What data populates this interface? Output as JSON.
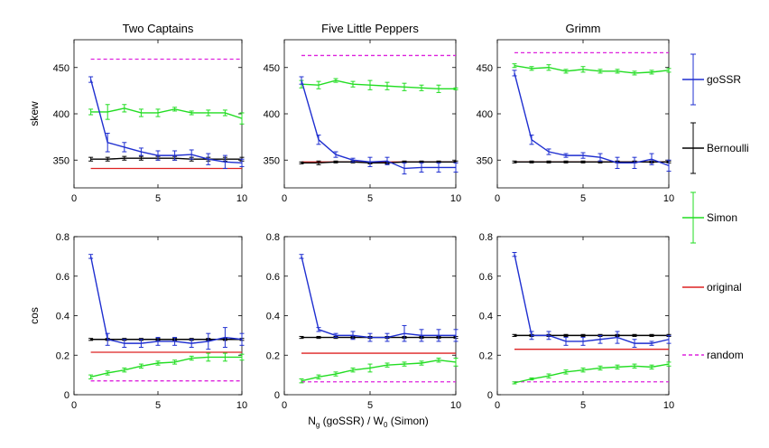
{
  "figure": {
    "xlabel_main": "N",
    "xlabel_sub": "g",
    "xlabel_mid": " (goSSR)  /  W",
    "xlabel_sub2": "0",
    "xlabel_tail": " (Simon)"
  },
  "legend": [
    {
      "label": "goSSR",
      "color": "#1f2fd0",
      "style": "errorbar"
    },
    {
      "label": "Bernoulli",
      "color": "#000000",
      "style": "errorbar"
    },
    {
      "label": "Simon",
      "color": "#22dd22",
      "style": "errorbar"
    },
    {
      "label": "original",
      "color": "#dd2222",
      "style": "solid"
    },
    {
      "label": "random",
      "color": "#dd22dd",
      "style": "dashed"
    }
  ],
  "chart_data": [
    {
      "type": "line",
      "title": "Two Captains",
      "ylabel": "skew",
      "xlabel": "",
      "xlim": [
        0,
        10
      ],
      "ylim": [
        320,
        480
      ],
      "yticks": [
        350,
        400,
        450
      ],
      "xticks": [
        0,
        5,
        10
      ],
      "x": [
        1,
        2,
        3,
        4,
        5,
        6,
        7,
        8,
        9,
        10
      ],
      "series": [
        {
          "name": "goSSR",
          "color": "#1f2fd0",
          "values": [
            437,
            369,
            364,
            359,
            355,
            355,
            356,
            351,
            348,
            347
          ],
          "err": [
            3,
            10,
            5,
            4,
            5,
            5,
            5,
            6,
            7,
            4
          ]
        },
        {
          "name": "Bernoulli",
          "color": "#000000",
          "values": [
            351,
            351,
            352,
            352,
            352,
            352,
            351,
            351,
            351,
            351
          ],
          "err": [
            2,
            2,
            2,
            2,
            2,
            2,
            2,
            2,
            2,
            2
          ]
        },
        {
          "name": "Simon",
          "color": "#22dd22",
          "values": [
            402,
            402,
            406,
            401,
            401,
            405,
            401,
            401,
            401,
            395
          ],
          "err": [
            3,
            8,
            4,
            4,
            4,
            2,
            2,
            3,
            3,
            6
          ]
        }
      ],
      "reference": [
        {
          "name": "original",
          "color": "#dd2222",
          "value": 341,
          "dash": false
        },
        {
          "name": "random",
          "color": "#dd22dd",
          "value": 459,
          "dash": true
        }
      ]
    },
    {
      "type": "line",
      "title": "Five Little Peppers",
      "ylabel": "",
      "xlabel": "",
      "xlim": [
        0,
        10
      ],
      "ylim": [
        320,
        480
      ],
      "yticks": [
        350,
        400,
        450
      ],
      "xticks": [
        0,
        5,
        10
      ],
      "x": [
        1,
        2,
        3,
        4,
        5,
        6,
        7,
        8,
        9,
        10
      ],
      "series": [
        {
          "name": "goSSR",
          "color": "#1f2fd0",
          "values": [
            436,
            372,
            356,
            350,
            348,
            349,
            341,
            342,
            342,
            342
          ],
          "err": [
            4,
            5,
            3,
            2,
            5,
            4,
            6,
            5,
            5,
            5
          ]
        },
        {
          "name": "Bernoulli",
          "color": "#000000",
          "values": [
            347,
            347,
            348,
            348,
            347,
            347,
            348,
            348,
            348,
            348
          ],
          "err": [
            1,
            2,
            1,
            1,
            1,
            1,
            1,
            1,
            1,
            1
          ]
        },
        {
          "name": "Simon",
          "color": "#22dd22",
          "values": [
            432,
            431,
            436,
            432,
            431,
            430,
            429,
            428,
            427,
            427
          ],
          "err": [
            4,
            4,
            2,
            3,
            5,
            4,
            4,
            3,
            4,
            1
          ]
        }
      ],
      "reference": [
        {
          "name": "original",
          "color": "#dd2222",
          "value": 348,
          "dash": false
        },
        {
          "name": "random",
          "color": "#dd22dd",
          "value": 463,
          "dash": true
        }
      ]
    },
    {
      "type": "line",
      "title": "Grimm",
      "ylabel": "",
      "xlabel": "",
      "xlim": [
        0,
        10
      ],
      "ylim": [
        320,
        480
      ],
      "yticks": [
        350,
        400,
        450
      ],
      "xticks": [
        0,
        5,
        10
      ],
      "x": [
        1,
        2,
        3,
        4,
        5,
        6,
        7,
        8,
        9,
        10
      ],
      "series": [
        {
          "name": "goSSR",
          "color": "#1f2fd0",
          "values": [
            444,
            372,
            359,
            355,
            355,
            353,
            347,
            347,
            351,
            344
          ],
          "err": [
            3,
            5,
            3,
            2,
            3,
            4,
            6,
            6,
            6,
            6
          ]
        },
        {
          "name": "Bernoulli",
          "color": "#000000",
          "values": [
            348,
            348,
            348,
            348,
            348,
            348,
            348,
            348,
            348,
            348
          ],
          "err": [
            1,
            1,
            1,
            1,
            1,
            1,
            1,
            1,
            1,
            1
          ]
        },
        {
          "name": "Simon",
          "color": "#22dd22",
          "values": [
            452,
            449,
            450,
            446,
            448,
            446,
            446,
            444,
            445,
            447
          ],
          "err": [
            2,
            2,
            3,
            2,
            3,
            2,
            2,
            2,
            2,
            2
          ]
        }
      ],
      "reference": [
        {
          "name": "original",
          "color": "#dd2222",
          "value": 348,
          "dash": false
        },
        {
          "name": "random",
          "color": "#dd22dd",
          "value": 466,
          "dash": true
        }
      ]
    },
    {
      "type": "line",
      "title": "",
      "ylabel": "cos",
      "xlabel": "",
      "xlim": [
        0,
        10
      ],
      "ylim": [
        0,
        0.8
      ],
      "yticks": [
        0,
        0.2,
        0.4,
        0.6,
        0.8
      ],
      "xticks": [
        0,
        5,
        10
      ],
      "x": [
        1,
        2,
        3,
        4,
        5,
        6,
        7,
        8,
        9,
        10
      ],
      "series": [
        {
          "name": "goSSR",
          "color": "#1f2fd0",
          "values": [
            0.7,
            0.28,
            0.26,
            0.26,
            0.27,
            0.27,
            0.26,
            0.27,
            0.29,
            0.28
          ],
          "err": [
            0.01,
            0.03,
            0.02,
            0.02,
            0.02,
            0.02,
            0.02,
            0.04,
            0.05,
            0.03
          ]
        },
        {
          "name": "Bernoulli",
          "color": "#000000",
          "values": [
            0.28,
            0.28,
            0.28,
            0.28,
            0.28,
            0.28,
            0.28,
            0.28,
            0.28,
            0.28
          ],
          "err": [
            0.005,
            0.005,
            0.005,
            0.005,
            0.005,
            0.005,
            0.005,
            0.005,
            0.005,
            0.005
          ]
        },
        {
          "name": "Simon",
          "color": "#22dd22",
          "values": [
            0.09,
            0.11,
            0.125,
            0.145,
            0.16,
            0.165,
            0.185,
            0.19,
            0.19,
            0.19
          ],
          "err": [
            0.01,
            0.01,
            0.01,
            0.01,
            0.01,
            0.01,
            0.01,
            0.02,
            0.02,
            0.015
          ]
        }
      ],
      "reference": [
        {
          "name": "original",
          "color": "#dd2222",
          "value": 0.215,
          "dash": false
        },
        {
          "name": "random",
          "color": "#dd22dd",
          "value": 0.07,
          "dash": true
        }
      ]
    },
    {
      "type": "line",
      "title": "",
      "ylabel": "",
      "xlabel": "",
      "xlim": [
        0,
        10
      ],
      "ylim": [
        0,
        0.8
      ],
      "yticks": [
        0,
        0.2,
        0.4,
        0.6,
        0.8
      ],
      "xticks": [
        0,
        5,
        10
      ],
      "x": [
        1,
        2,
        3,
        4,
        5,
        6,
        7,
        8,
        9,
        10
      ],
      "series": [
        {
          "name": "goSSR",
          "color": "#1f2fd0",
          "values": [
            0.7,
            0.33,
            0.3,
            0.3,
            0.29,
            0.29,
            0.31,
            0.3,
            0.3,
            0.3
          ],
          "err": [
            0.01,
            0.01,
            0.01,
            0.02,
            0.02,
            0.02,
            0.04,
            0.03,
            0.03,
            0.03
          ]
        },
        {
          "name": "Bernoulli",
          "color": "#000000",
          "values": [
            0.29,
            0.29,
            0.29,
            0.29,
            0.29,
            0.29,
            0.29,
            0.29,
            0.29,
            0.29
          ],
          "err": [
            0.005,
            0.005,
            0.005,
            0.005,
            0.005,
            0.005,
            0.005,
            0.005,
            0.005,
            0.005
          ]
        },
        {
          "name": "Simon",
          "color": "#22dd22",
          "values": [
            0.07,
            0.09,
            0.105,
            0.125,
            0.135,
            0.15,
            0.155,
            0.16,
            0.175,
            0.165
          ],
          "err": [
            0.01,
            0.01,
            0.01,
            0.01,
            0.02,
            0.01,
            0.01,
            0.01,
            0.01,
            0.02
          ]
        }
      ],
      "reference": [
        {
          "name": "original",
          "color": "#dd2222",
          "value": 0.21,
          "dash": false
        },
        {
          "name": "random",
          "color": "#dd22dd",
          "value": 0.065,
          "dash": true
        }
      ]
    },
    {
      "type": "line",
      "title": "",
      "ylabel": "",
      "xlabel": "",
      "xlim": [
        0,
        10
      ],
      "ylim": [
        0,
        0.8
      ],
      "yticks": [
        0,
        0.2,
        0.4,
        0.6,
        0.8
      ],
      "xticks": [
        0,
        5,
        10
      ],
      "x": [
        1,
        2,
        3,
        4,
        5,
        6,
        7,
        8,
        9,
        10
      ],
      "series": [
        {
          "name": "goSSR",
          "color": "#1f2fd0",
          "values": [
            0.71,
            0.3,
            0.3,
            0.27,
            0.27,
            0.28,
            0.29,
            0.26,
            0.26,
            0.28
          ],
          "err": [
            0.01,
            0.02,
            0.02,
            0.02,
            0.02,
            0.02,
            0.03,
            0.02,
            0.01,
            0.02
          ]
        },
        {
          "name": "Bernoulli",
          "color": "#000000",
          "values": [
            0.3,
            0.3,
            0.3,
            0.3,
            0.3,
            0.3,
            0.3,
            0.3,
            0.3,
            0.3
          ],
          "err": [
            0.005,
            0.005,
            0.005,
            0.005,
            0.005,
            0.005,
            0.005,
            0.005,
            0.005,
            0.005
          ]
        },
        {
          "name": "Simon",
          "color": "#22dd22",
          "values": [
            0.06,
            0.08,
            0.095,
            0.115,
            0.125,
            0.135,
            0.14,
            0.145,
            0.14,
            0.155
          ],
          "err": [
            0.005,
            0.005,
            0.01,
            0.01,
            0.01,
            0.01,
            0.01,
            0.01,
            0.01,
            0.01
          ]
        }
      ],
      "reference": [
        {
          "name": "original",
          "color": "#dd2222",
          "value": 0.23,
          "dash": false
        },
        {
          "name": "random",
          "color": "#dd22dd",
          "value": 0.065,
          "dash": true
        }
      ]
    }
  ]
}
